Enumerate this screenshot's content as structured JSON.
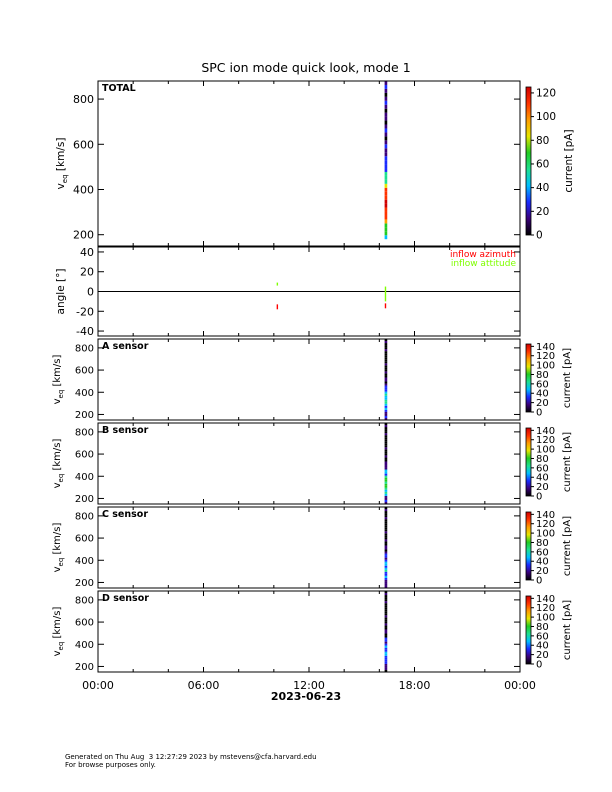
{
  "title": "SPC ion mode quick look, mode 1",
  "xaxis": {
    "ticks": [
      {
        "label": "00:00",
        "hour": 0
      },
      {
        "label": "06:00",
        "hour": 6
      },
      {
        "label": "12:00",
        "hour": 12
      },
      {
        "label": "18:00",
        "hour": 18
      },
      {
        "label": "00:00",
        "hour": 24
      }
    ],
    "date_label": "2023-06-23"
  },
  "colorscale": [
    "#000000",
    "#3a007a",
    "#1a2bff",
    "#00bfff",
    "#1ee090",
    "#22cc22",
    "#e6e600",
    "#ff9d00",
    "#ff3300",
    "#d00000"
  ],
  "footer": {
    "line1": "Generated on Thu Aug  3 12:27:29 2023 by mstevens@cfa.harvard.edu",
    "line2": "For browse purposes only."
  },
  "chart_data": [
    {
      "type": "heatmap",
      "panel": "TOTAL",
      "label": "TOTAL",
      "ylabel": "v_eq [km/s]",
      "ylim": [
        150,
        880
      ],
      "yticks": [
        200,
        400,
        600,
        800
      ],
      "colorbar": {
        "label": "current [pA]",
        "range": [
          0,
          125
        ],
        "ticks": [
          0,
          20,
          40,
          60,
          80,
          100,
          120
        ]
      },
      "data_hour_range": [
        16.3,
        16.45
      ],
      "stripes": [
        {
          "ymin": 180,
          "ymax": 880,
          "peak_y": 330,
          "peak_level": 0.9
        }
      ]
    },
    {
      "type": "line",
      "panel": "angle",
      "ylabel": "angle [°]",
      "ylim": [
        -45,
        45
      ],
      "yticks": [
        -40,
        -20,
        0,
        20,
        40
      ],
      "zero_line": true,
      "series": [
        {
          "name": "inflow azimuth",
          "color": "#ff0000",
          "segments": [
            {
              "hour": 10.2,
              "y0": -13,
              "y1": -18
            },
            {
              "hour": 16.35,
              "y0": -12,
              "y1": -17
            }
          ]
        },
        {
          "name": "inflow attitude",
          "color": "#7fff00",
          "segments": [
            {
              "hour": 10.2,
              "y0": 6,
              "y1": 9
            },
            {
              "hour": 16.35,
              "y0": 5,
              "y1": -10
            }
          ]
        }
      ]
    },
    {
      "type": "heatmap",
      "panel": "A",
      "label": "A sensor",
      "ylabel": "v_eq [km/s]",
      "ylim": [
        150,
        880
      ],
      "yticks": [
        200,
        400,
        600,
        800
      ],
      "colorbar": {
        "label": "current [pA]",
        "range": [
          0,
          145
        ],
        "ticks": [
          0,
          20,
          40,
          60,
          80,
          100,
          120,
          140
        ]
      },
      "data_hour_range": [
        16.3,
        16.45
      ],
      "stripes": [
        {
          "ymin": 150,
          "ymax": 880,
          "peak_y": 330,
          "peak_level": 0.4
        }
      ]
    },
    {
      "type": "heatmap",
      "panel": "B",
      "label": "B sensor",
      "ylabel": "v_eq [km/s]",
      "ylim": [
        150,
        880
      ],
      "yticks": [
        200,
        400,
        600,
        800
      ],
      "colorbar": {
        "label": "current [pA]",
        "range": [
          0,
          145
        ],
        "ticks": [
          0,
          20,
          40,
          60,
          80,
          100,
          120,
          140
        ]
      },
      "data_hour_range": [
        16.3,
        16.45
      ],
      "stripes": [
        {
          "ymin": 150,
          "ymax": 880,
          "peak_y": 330,
          "peak_level": 0.55
        }
      ]
    },
    {
      "type": "heatmap",
      "panel": "C",
      "label": "C sensor",
      "ylabel": "v_eq [km/s]",
      "ylim": [
        150,
        880
      ],
      "yticks": [
        200,
        400,
        600,
        800
      ],
      "colorbar": {
        "label": "current [pA]",
        "range": [
          0,
          145
        ],
        "ticks": [
          0,
          20,
          40,
          60,
          80,
          100,
          120,
          140
        ]
      },
      "data_hour_range": [
        16.3,
        16.45
      ],
      "stripes": [
        {
          "ymin": 150,
          "ymax": 880,
          "peak_y": 330,
          "peak_level": 0.35
        }
      ]
    },
    {
      "type": "heatmap",
      "panel": "D",
      "label": "D sensor",
      "ylabel": "v_eq [km/s]",
      "ylim": [
        150,
        880
      ],
      "yticks": [
        200,
        400,
        600,
        800
      ],
      "colorbar": {
        "label": "current [pA]",
        "range": [
          0,
          145
        ],
        "ticks": [
          0,
          20,
          40,
          60,
          80,
          100,
          120,
          140
        ]
      },
      "data_hour_range": [
        16.3,
        16.45
      ],
      "stripes": [
        {
          "ymin": 150,
          "ymax": 880,
          "peak_y": 330,
          "peak_level": 0.3
        }
      ]
    }
  ]
}
